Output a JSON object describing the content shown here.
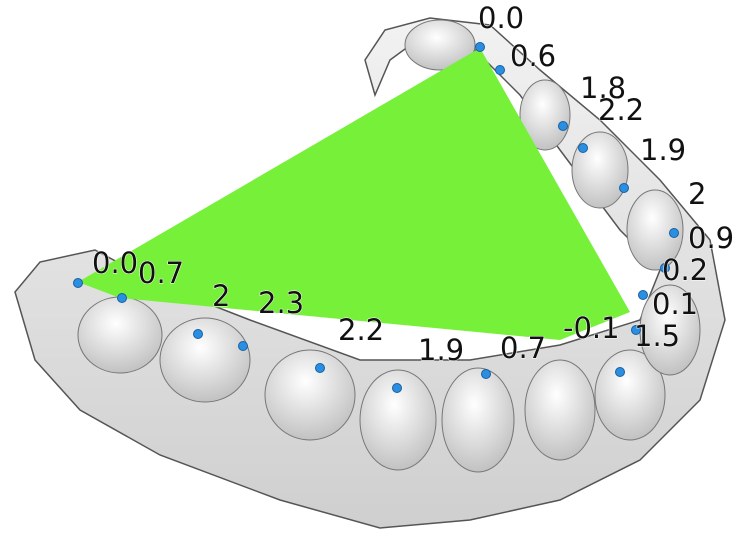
{
  "labels": [
    "0.0",
    "0.6",
    "1.8",
    "2.2",
    "1.9",
    "2",
    "0.9",
    "0.2",
    "0.1",
    "1.5",
    "-0.1",
    "0.7",
    "1.9",
    "2.2",
    "2.3",
    "2",
    "0.7",
    "0.0"
  ]
}
